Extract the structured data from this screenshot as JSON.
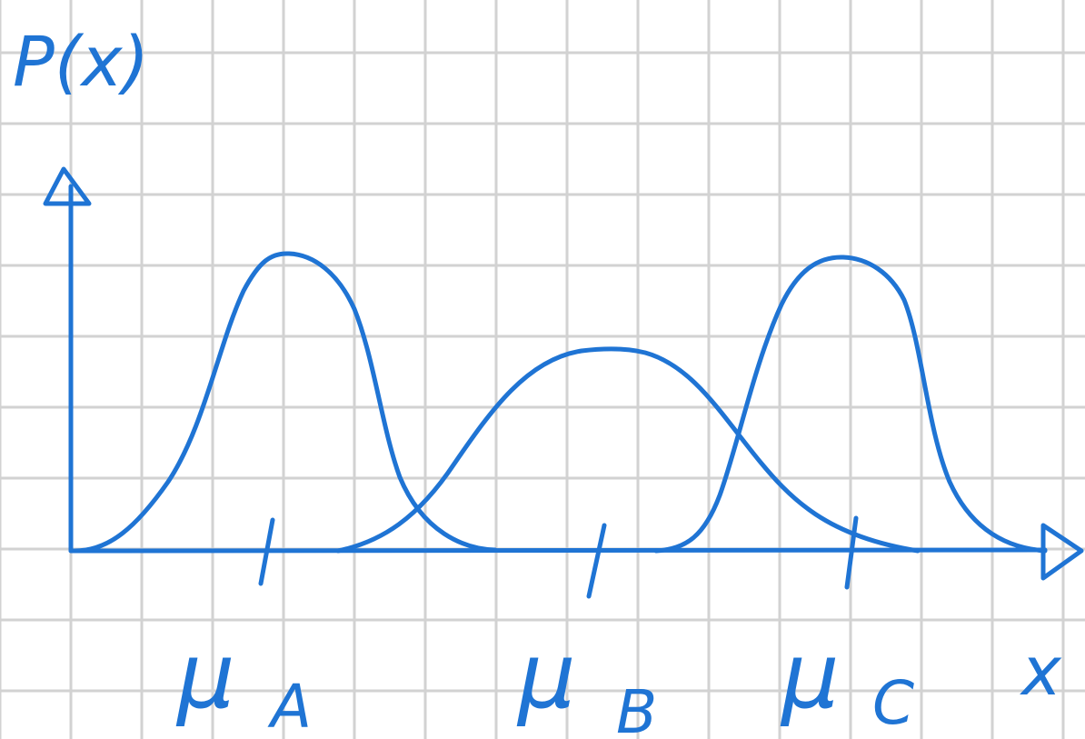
{
  "labels": {
    "y_axis": "P(x)",
    "x_axis": "x",
    "mean_a": "μ",
    "mean_a_sub": "A",
    "mean_b": "μ",
    "mean_b_sub": "B",
    "mean_c": "μ",
    "mean_c_sub": "C"
  },
  "colors": {
    "ink": "#1f74d4",
    "grid": "#d2d2d2",
    "paper": "#ffffff"
  },
  "distributions": [
    {
      "name": "A",
      "mean_tick": "μA",
      "relative_peak": 1.0,
      "relative_spread": "narrow"
    },
    {
      "name": "B",
      "mean_tick": "μB",
      "relative_peak": 0.68,
      "relative_spread": "wide"
    },
    {
      "name": "C",
      "mean_tick": "μC",
      "relative_peak": 1.0,
      "relative_spread": "narrow"
    }
  ]
}
